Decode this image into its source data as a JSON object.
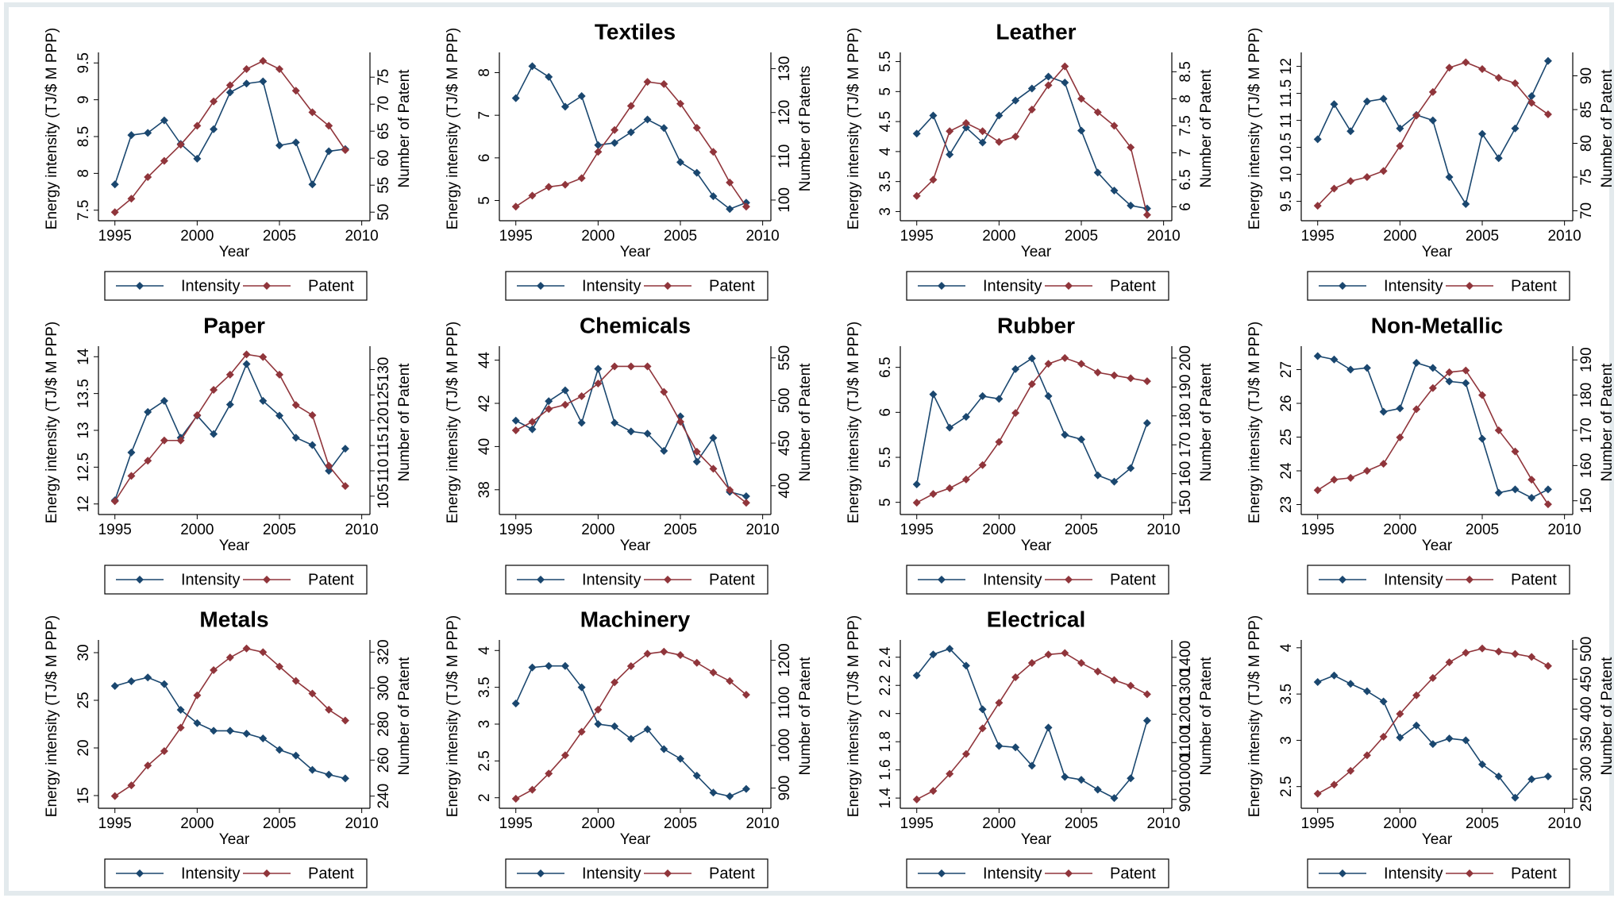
{
  "chart_data": [
    {
      "type": "line",
      "x": [
        1995,
        1996,
        1997,
        1998,
        1999,
        2000,
        2001,
        2002,
        2003,
        2004,
        2005,
        2006,
        2007,
        2008,
        2009
      ],
      "xlim": [
        1994,
        2010.5
      ],
      "xticks": [
        1995,
        2000,
        2005,
        2010
      ],
      "xlabel": "Year",
      "ylabel": "Energy intensity  (TJ/$ M PPP)",
      "y2label": "Number of Patent",
      "ylim": [
        7.4,
        9.6
      ],
      "yticks": [
        7.5,
        8,
        8.5,
        9,
        9.5
      ],
      "y2lim": [
        49,
        79
      ],
      "y2ticks": [
        50,
        55,
        60,
        65,
        70,
        75
      ],
      "series": [
        {
          "name": "Intensity",
          "color": "#1a476f",
          "values": [
            7.85,
            8.52,
            8.55,
            8.72,
            8.4,
            8.2,
            8.6,
            9.1,
            9.22,
            9.25,
            8.38,
            8.42,
            7.85,
            8.3,
            8.33
          ]
        },
        {
          "name": "Patent",
          "color": "#90353b",
          "axis": "y2",
          "values": [
            50,
            52.5,
            56.5,
            59.5,
            62.5,
            66,
            70.5,
            73.5,
            76.5,
            78,
            76.5,
            72.5,
            68.5,
            66,
            61.5
          ]
        }
      ]
    },
    {
      "type": "line",
      "title": "Textiles",
      "x": [
        1995,
        1996,
        1997,
        1998,
        1999,
        2000,
        2001,
        2002,
        2003,
        2004,
        2005,
        2006,
        2007,
        2008,
        2009
      ],
      "xlim": [
        1994,
        2010.5
      ],
      "xticks": [
        1995,
        2000,
        2005,
        2010
      ],
      "xlabel": "Year",
      "ylabel": "Energy intensity  (TJ/$ M PPP)",
      "y2label": "Number of Patents",
      "ylim": [
        4.6,
        8.4
      ],
      "yticks": [
        5,
        6,
        7,
        8
      ],
      "y2lim": [
        96,
        133
      ],
      "y2ticks": [
        100,
        110,
        120,
        130
      ],
      "series": [
        {
          "name": "Intensity",
          "color": "#1a476f",
          "values": [
            7.4,
            8.15,
            7.9,
            7.2,
            7.45,
            6.3,
            6.35,
            6.6,
            6.9,
            6.7,
            5.9,
            5.65,
            5.1,
            4.8,
            4.95
          ]
        },
        {
          "name": "Patent",
          "color": "#90353b",
          "axis": "y2",
          "values": [
            98.5,
            101,
            103,
            103.5,
            105,
            111,
            116,
            121.5,
            127,
            126.5,
            122,
            116.5,
            111,
            104,
            98.5
          ]
        }
      ]
    },
    {
      "type": "line",
      "title": "Leather",
      "x": [
        1995,
        1996,
        1997,
        1998,
        1999,
        2000,
        2001,
        2002,
        2003,
        2004,
        2005,
        2006,
        2007,
        2008,
        2009
      ],
      "xlim": [
        1994,
        2010.5
      ],
      "xticks": [
        1995,
        2000,
        2005,
        2010
      ],
      "xlabel": "Year",
      "ylabel": "Energy intensity  (TJ/$ M PPP)",
      "y2label": "Number of Patent",
      "ylim": [
        2.9,
        5.6
      ],
      "yticks": [
        3,
        3.5,
        4,
        4.5,
        5,
        5.5
      ],
      "y2lim": [
        5.8,
        8.8
      ],
      "y2ticks": [
        6,
        6.5,
        7,
        7.5,
        8,
        8.5
      ],
      "series": [
        {
          "name": "Intensity",
          "color": "#1a476f",
          "values": [
            4.3,
            4.6,
            3.95,
            4.4,
            4.15,
            4.6,
            4.85,
            5.05,
            5.25,
            5.15,
            4.35,
            3.65,
            3.35,
            3.1,
            3.05
          ]
        },
        {
          "name": "Patent",
          "color": "#90353b",
          "axis": "y2",
          "values": [
            6.2,
            6.5,
            7.4,
            7.55,
            7.4,
            7.2,
            7.3,
            7.8,
            8.25,
            8.6,
            8.0,
            7.75,
            7.5,
            7.1,
            5.85
          ]
        }
      ]
    },
    {
      "type": "line",
      "x": [
        1995,
        1996,
        1997,
        1998,
        1999,
        2000,
        2001,
        2002,
        2003,
        2004,
        2005,
        2006,
        2007,
        2008,
        2009
      ],
      "xlim": [
        1994,
        2010.5
      ],
      "xticks": [
        1995,
        2000,
        2005,
        2010
      ],
      "xlabel": "Year",
      "ylabel": "Energy intensity  (TJ/$ M PPP)",
      "y2label": "Number of Patent",
      "ylim": [
        9.2,
        12.2
      ],
      "yticks": [
        9.5,
        10,
        10.5,
        11,
        11.5,
        12
      ],
      "y2lim": [
        69,
        93
      ],
      "y2ticks": [
        70,
        75,
        80,
        85,
        90
      ],
      "series": [
        {
          "name": "Intensity",
          "color": "#1a476f",
          "values": [
            10.65,
            11.3,
            10.8,
            11.35,
            11.4,
            10.85,
            11.1,
            11.0,
            9.95,
            9.45,
            10.75,
            10.3,
            10.85,
            11.45,
            12.1
          ]
        },
        {
          "name": "Patent",
          "color": "#90353b",
          "axis": "y2",
          "values": [
            70.75,
            73.3,
            74.4,
            75,
            75.9,
            79.6,
            84.1,
            87.6,
            91.2,
            92,
            91,
            89.7,
            88.9,
            86,
            84.3
          ]
        }
      ]
    },
    {
      "type": "line",
      "title": "Paper",
      "x": [
        1995,
        1996,
        1997,
        1998,
        1999,
        2000,
        2001,
        2002,
        2003,
        2004,
        2005,
        2006,
        2007,
        2008,
        2009
      ],
      "xlim": [
        1994,
        2010.5
      ],
      "xticks": [
        1995,
        2000,
        2005,
        2010
      ],
      "xlabel": "Year",
      "ylabel": "Energy intensity  (TJ/$ M PPP)",
      "y2label": "Number of Patent",
      "ylim": [
        11.9,
        14.1
      ],
      "yticks": [
        12,
        12.5,
        13,
        13.5,
        14
      ],
      "y2lim": [
        102,
        134
      ],
      "y2ticks": [
        105,
        110,
        115,
        120,
        125,
        130
      ],
      "series": [
        {
          "name": "Intensity",
          "color": "#1a476f",
          "values": [
            12.05,
            12.7,
            13.25,
            13.4,
            12.9,
            13.2,
            12.95,
            13.35,
            13.9,
            13.4,
            13.2,
            12.9,
            12.8,
            12.45,
            12.75
          ]
        },
        {
          "name": "Patent",
          "color": "#90353b",
          "axis": "y2",
          "values": [
            104,
            109,
            112,
            116,
            116,
            121,
            126,
            129,
            133,
            132.5,
            129,
            123,
            121,
            111,
            107
          ]
        }
      ]
    },
    {
      "type": "line",
      "title": "Chemicals",
      "x": [
        1995,
        1996,
        1997,
        1998,
        1999,
        2000,
        2001,
        2002,
        2003,
        2004,
        2005,
        2006,
        2007,
        2008,
        2009
      ],
      "xlim": [
        1994,
        2010.5
      ],
      "xticks": [
        1995,
        2000,
        2005,
        2010
      ],
      "xlabel": "Year",
      "ylabel": "Energy intensity  (TJ/$ M PPP)",
      "y2label": "Number of Patent",
      "ylim": [
        37,
        44.5
      ],
      "yticks": [
        38,
        40,
        42,
        44
      ],
      "y2lim": [
        370,
        560
      ],
      "y2ticks": [
        400,
        450,
        500,
        550
      ],
      "series": [
        {
          "name": "Intensity",
          "color": "#1a476f",
          "values": [
            41.2,
            40.8,
            42.1,
            42.6,
            41.1,
            43.6,
            41.1,
            40.7,
            40.6,
            39.8,
            41.4,
            39.3,
            40.4,
            37.9,
            37.7
          ]
        },
        {
          "name": "Patent",
          "color": "#90353b",
          "axis": "y2",
          "values": [
            465,
            475,
            490,
            495,
            505,
            520,
            540,
            540,
            540,
            510,
            475,
            440,
            420,
            395,
            380
          ]
        }
      ]
    },
    {
      "type": "line",
      "title": "Rubber",
      "x": [
        1995,
        1996,
        1997,
        1998,
        1999,
        2000,
        2001,
        2002,
        2003,
        2004,
        2005,
        2006,
        2007,
        2008,
        2009
      ],
      "xlim": [
        1994,
        2010.5
      ],
      "xticks": [
        1995,
        2000,
        2005,
        2010
      ],
      "xlabel": "Year",
      "ylabel": "Energy intensity  (TJ/$ M PPP)",
      "y2label": "Number of Patent",
      "ylim": [
        4.9,
        6.7
      ],
      "yticks": [
        5,
        5.5,
        6,
        6.5
      ],
      "y2lim": [
        147,
        203
      ],
      "y2ticks": [
        150,
        160,
        170,
        180,
        190,
        200
      ],
      "series": [
        {
          "name": "Intensity",
          "color": "#1a476f",
          "values": [
            5.2,
            6.2,
            5.83,
            5.95,
            6.18,
            6.15,
            6.48,
            6.6,
            6.18,
            5.75,
            5.7,
            5.3,
            5.23,
            5.38,
            5.88
          ]
        },
        {
          "name": "Patent",
          "color": "#90353b",
          "axis": "y2",
          "values": [
            150,
            153,
            155,
            158,
            163,
            171,
            181,
            191,
            198,
            200,
            198,
            195,
            194,
            193,
            192
          ]
        }
      ]
    },
    {
      "type": "line",
      "title": "Non-Metallic",
      "x": [
        1995,
        1996,
        1997,
        1998,
        1999,
        2000,
        2001,
        2002,
        2003,
        2004,
        2005,
        2006,
        2007,
        2008,
        2009
      ],
      "xlim": [
        1994,
        2010.5
      ],
      "xticks": [
        1995,
        2000,
        2005,
        2010
      ],
      "xlabel": "Year",
      "ylabel": "Energy intensity  (TJ/$ M PPP)",
      "y2label": "Number of Patent",
      "ylim": [
        22.8,
        27.6
      ],
      "yticks": [
        23,
        24,
        25,
        26,
        27
      ],
      "y2lim": [
        147,
        193
      ],
      "y2ticks": [
        150,
        160,
        170,
        180,
        190
      ],
      "series": [
        {
          "name": "Intensity",
          "color": "#1a476f",
          "values": [
            27.4,
            27.3,
            27.0,
            27.05,
            25.75,
            25.85,
            27.2,
            27.05,
            26.65,
            26.6,
            24.95,
            23.35,
            23.45,
            23.2,
            23.45
          ]
        },
        {
          "name": "Patent",
          "color": "#90353b",
          "axis": "y2",
          "values": [
            153,
            156,
            156.5,
            158.5,
            160.5,
            168,
            176,
            182,
            186.5,
            187,
            180,
            170,
            164,
            156,
            149
          ]
        }
      ]
    },
    {
      "type": "line",
      "title": "Metals",
      "x": [
        1995,
        1996,
        1997,
        1998,
        1999,
        2000,
        2001,
        2002,
        2003,
        2004,
        2005,
        2006,
        2007,
        2008,
        2009
      ],
      "xlim": [
        1994,
        2010.5
      ],
      "xticks": [
        1995,
        2000,
        2005,
        2010
      ],
      "xlabel": "Year",
      "ylabel": "Energy intensity  (TJ/$ M PPP)",
      "y2label": "Number of Patent",
      "ylim": [
        14,
        31
      ],
      "yticks": [
        15,
        20,
        25,
        30
      ],
      "y2lim": [
        235,
        325
      ],
      "y2ticks": [
        240,
        260,
        280,
        300,
        320
      ],
      "series": [
        {
          "name": "Intensity",
          "color": "#1a476f",
          "values": [
            26.5,
            27,
            27.4,
            26.7,
            24,
            22.6,
            21.8,
            21.8,
            21.5,
            21,
            19.8,
            19.2,
            17.7,
            17.2,
            16.8
          ]
        },
        {
          "name": "Patent",
          "color": "#90353b",
          "axis": "y2",
          "values": [
            240,
            246,
            257,
            265,
            278,
            296,
            310,
            317,
            322,
            320,
            312,
            304,
            297,
            288,
            282
          ]
        }
      ]
    },
    {
      "type": "line",
      "title": "Machinery",
      "x": [
        1995,
        1996,
        1997,
        1998,
        1999,
        2000,
        2001,
        2002,
        2003,
        2004,
        2005,
        2006,
        2007,
        2008,
        2009
      ],
      "xlim": [
        1994,
        2010.5
      ],
      "xticks": [
        1995,
        2000,
        2005,
        2010
      ],
      "xlabel": "Year",
      "ylabel": "Energy intensity  (TJ/$ M PPP)",
      "y2label": "Number of Patent",
      "ylim": [
        1.9,
        4.1
      ],
      "yticks": [
        2,
        2.5,
        3,
        3.5,
        4
      ],
      "y2lim": [
        860,
        1240
      ],
      "y2ticks": [
        900,
        1000,
        1100,
        1200
      ],
      "series": [
        {
          "name": "Intensity",
          "color": "#1a476f",
          "values": [
            3.28,
            3.77,
            3.79,
            3.79,
            3.5,
            3.0,
            2.97,
            2.8,
            2.93,
            2.66,
            2.53,
            2.3,
            2.07,
            2.02,
            2.12
          ]
        },
        {
          "name": "Patent",
          "color": "#90353b",
          "axis": "y2",
          "values": [
            875,
            896,
            934,
            977,
            1032,
            1084,
            1148,
            1186,
            1215,
            1220,
            1212,
            1194,
            1171,
            1151,
            1119
          ]
        }
      ]
    },
    {
      "type": "line",
      "title": "Electrical",
      "x": [
        1995,
        1996,
        1997,
        1998,
        1999,
        2000,
        2001,
        2002,
        2003,
        2004,
        2005,
        2006,
        2007,
        2008,
        2009
      ],
      "xlim": [
        1994,
        2010.5
      ],
      "xticks": [
        1995,
        2000,
        2005,
        2010
      ],
      "xlabel": "Year",
      "ylabel": "Energy intensity  (TJ/$ M PPP)",
      "y2label": "Number of Patent",
      "ylim": [
        1.35,
        2.5
      ],
      "yticks": [
        1.4,
        1.6,
        1.8,
        2,
        2.2,
        2.4
      ],
      "y2lim": [
        880,
        1450
      ],
      "y2ticks": [
        900,
        1000,
        1100,
        1200,
        1300,
        1400
      ],
      "series": [
        {
          "name": "Intensity",
          "color": "#1a476f",
          "values": [
            2.27,
            2.42,
            2.46,
            2.34,
            2.03,
            1.77,
            1.76,
            1.63,
            1.9,
            1.55,
            1.53,
            1.46,
            1.4,
            1.54,
            1.95
          ]
        },
        {
          "name": "Patent",
          "color": "#90353b",
          "axis": "y2",
          "values": [
            900,
            930,
            990,
            1060,
            1150,
            1240,
            1330,
            1380,
            1410,
            1415,
            1380,
            1350,
            1320,
            1300,
            1270
          ]
        }
      ]
    },
    {
      "type": "line",
      "x": [
        1995,
        1996,
        1997,
        1998,
        1999,
        2000,
        2001,
        2002,
        2003,
        2004,
        2005,
        2006,
        2007,
        2008,
        2009
      ],
      "xlim": [
        1994,
        2010.5
      ],
      "xticks": [
        1995,
        2000,
        2005,
        2010
      ],
      "xlabel": "Year",
      "ylabel": "Energy intensity  (TJ/$ M PPP)",
      "y2label": "Number of Patent",
      "ylim": [
        2.3,
        4.05
      ],
      "yticks": [
        2.5,
        3,
        3.5,
        4
      ],
      "y2lim": [
        240,
        510
      ],
      "y2ticks": [
        250,
        300,
        350,
        400,
        450,
        500
      ],
      "series": [
        {
          "name": "Intensity",
          "color": "#1a476f",
          "values": [
            3.63,
            3.7,
            3.61,
            3.53,
            3.42,
            3.03,
            3.16,
            2.96,
            3.02,
            3.0,
            2.74,
            2.61,
            2.38,
            2.58,
            2.61
          ]
        },
        {
          "name": "Patent",
          "color": "#90353b",
          "axis": "y2",
          "values": [
            259,
            274,
            297,
            323,
            354,
            392,
            423,
            452,
            478,
            494,
            501,
            496,
            492,
            487,
            472
          ]
        }
      ]
    }
  ]
}
